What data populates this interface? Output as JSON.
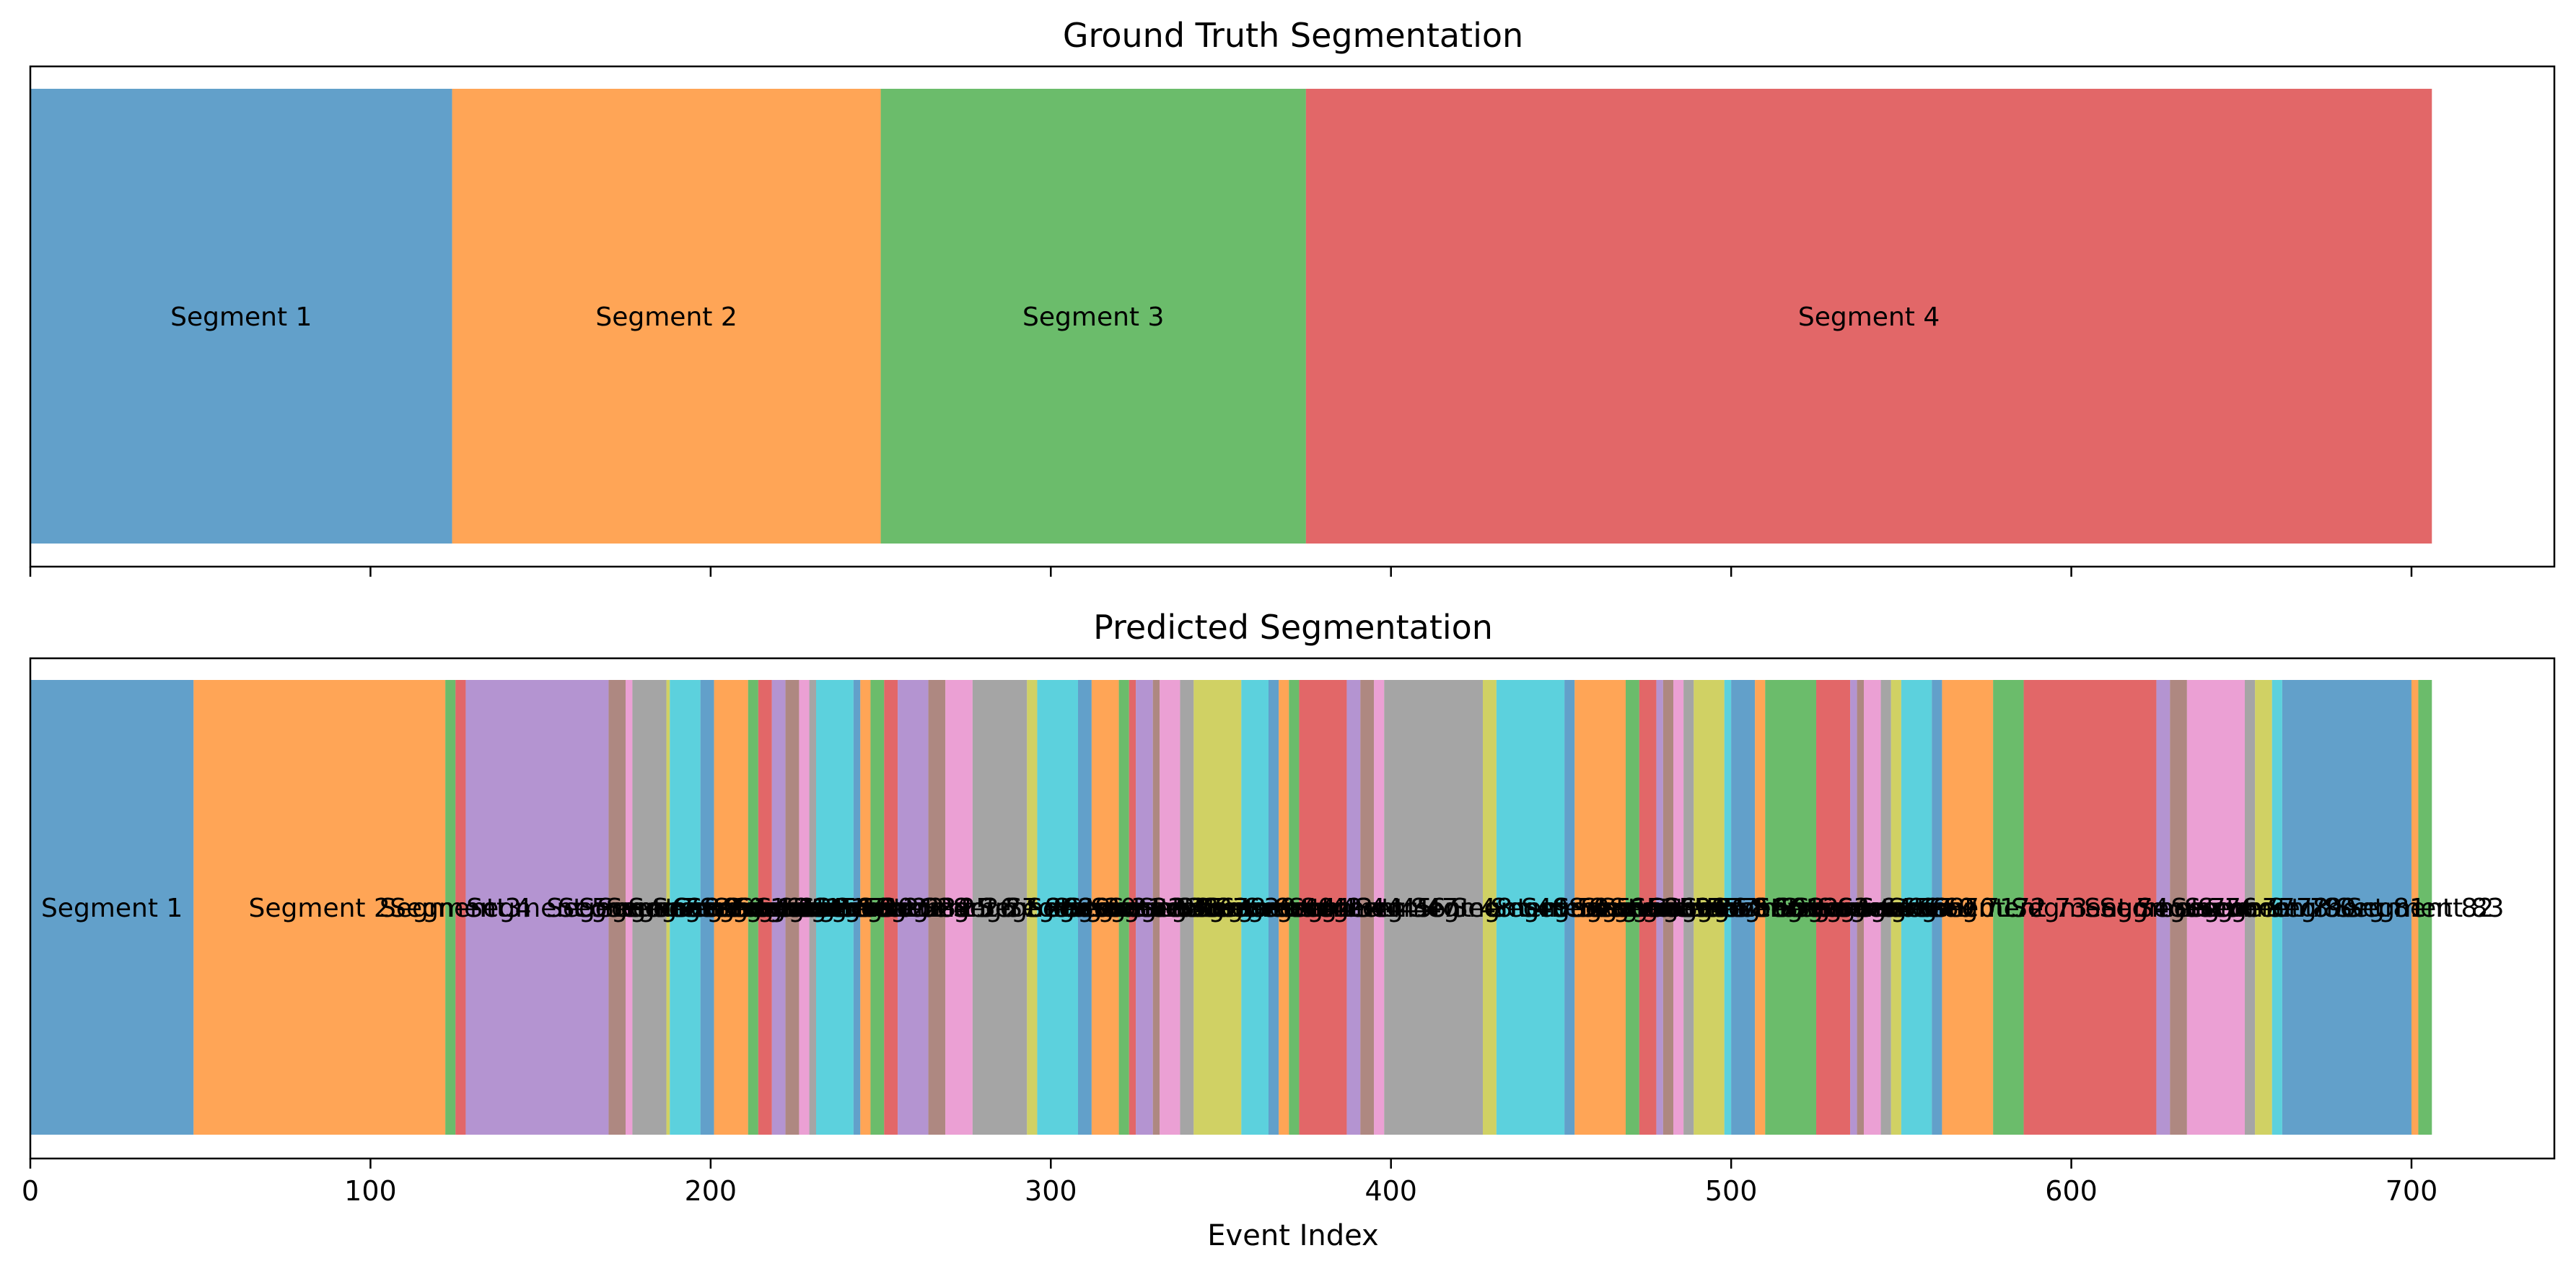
{
  "colors": [
    "#1f77b4",
    "#ff7f0e",
    "#2ca02c",
    "#d62728",
    "#9467bd",
    "#8c564b",
    "#e377c2",
    "#7f7f7f",
    "#bcbd22",
    "#17becf"
  ],
  "chart_data": [
    {
      "type": "bar",
      "title": "Ground Truth Segmentation",
      "xlim": [
        0,
        742
      ],
      "segments": [
        {
          "label": "Segment 1",
          "start": 0,
          "end": 124
        },
        {
          "label": "Segment 2",
          "start": 124,
          "end": 250
        },
        {
          "label": "Segment 3",
          "start": 250,
          "end": 375
        },
        {
          "label": "Segment 4",
          "start": 375,
          "end": 706
        }
      ]
    },
    {
      "type": "bar",
      "title": "Predicted Segmentation",
      "xlabel": "Event Index",
      "xlim": [
        0,
        742
      ],
      "xticks": [
        "0",
        "100",
        "200",
        "300",
        "400",
        "500",
        "600",
        "700"
      ],
      "breakpoints": [
        0,
        48,
        122,
        125,
        128,
        170,
        175,
        177,
        187,
        188,
        197,
        201,
        211,
        214,
        218,
        222,
        226,
        229,
        231,
        231,
        242,
        244,
        247,
        251,
        255,
        264,
        269,
        277,
        293,
        296,
        308,
        312,
        320,
        323,
        325,
        330,
        332,
        338,
        342,
        356,
        364,
        367,
        370,
        373,
        387,
        391,
        395,
        398,
        427,
        431,
        451,
        454,
        469,
        473,
        478,
        480,
        483,
        486,
        489,
        498,
        500,
        507,
        510,
        525,
        535,
        537,
        539,
        544,
        547,
        550,
        559,
        562,
        577,
        586,
        625,
        629,
        634,
        651,
        654,
        659,
        662,
        700,
        702,
        706
      ]
    }
  ]
}
